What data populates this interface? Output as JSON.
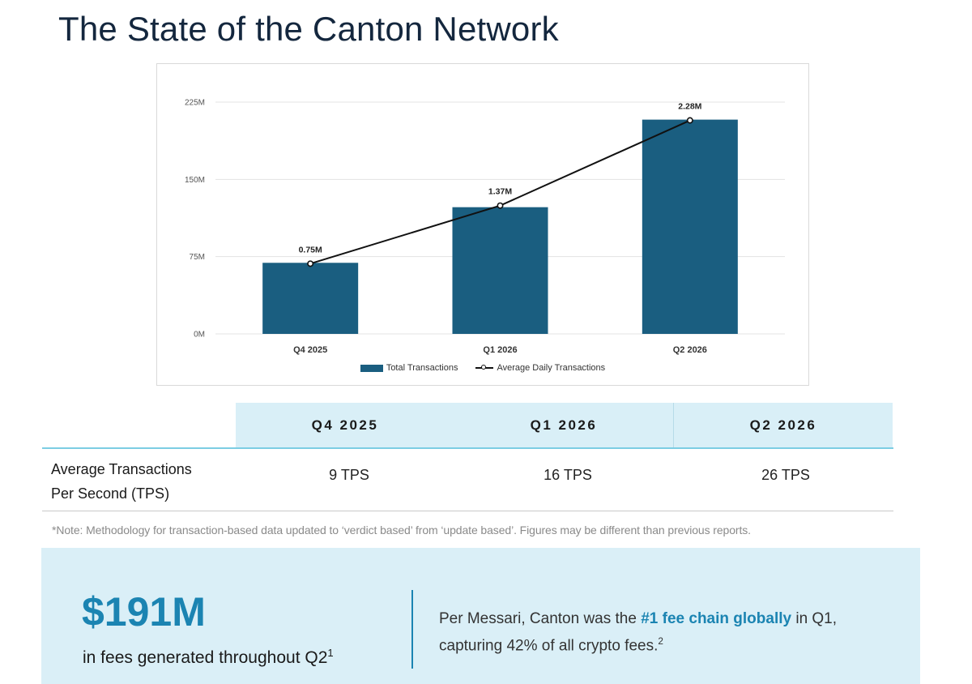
{
  "title": "The State of the Canton Network",
  "colors": {
    "bar": "#1a5e80",
    "line": "#111111",
    "accent": "#1b84b2",
    "panel": "#daeff7"
  },
  "chart_data": {
    "type": "bar",
    "categories": [
      "Q4 2025",
      "Q1 2026",
      "Q2 2026"
    ],
    "series": [
      {
        "name": "Total Transactions",
        "type": "bar",
        "values": [
          69,
          123,
          208
        ]
      },
      {
        "name": "Average Daily Transactions",
        "type": "line",
        "values": [
          0.75,
          1.37,
          2.28
        ],
        "labels": [
          "0.75M",
          "1.37M",
          "2.28M"
        ]
      }
    ],
    "ylim": [
      0,
      225
    ],
    "yticks": [
      0,
      75,
      150,
      225
    ],
    "ytick_labels": [
      "0M",
      "75M",
      "150M",
      "225M"
    ],
    "legend": "bottom",
    "grid": true
  },
  "table": {
    "headers": [
      "Q4 2025",
      "Q1 2026",
      "Q2 2026"
    ],
    "row_label_line1": "Average Transactions",
    "row_label_line2": "Per Second (TPS)",
    "values": [
      "9 TPS",
      "16 TPS",
      "26 TPS"
    ]
  },
  "note": "*Note: Methodology for transaction-based data updated to ‘verdict based’ from ‘update based’. Figures may be different than previous reports.",
  "fees": {
    "amount": "$191M",
    "caption": "in fees generated throughout Q2",
    "caption_sup": "1",
    "quote_pre": "Per Messari, Canton was the ",
    "quote_highlight": "#1 fee chain globally",
    "quote_post": " in Q1, capturing 42% of all crypto fees.",
    "quote_sup": "2"
  }
}
